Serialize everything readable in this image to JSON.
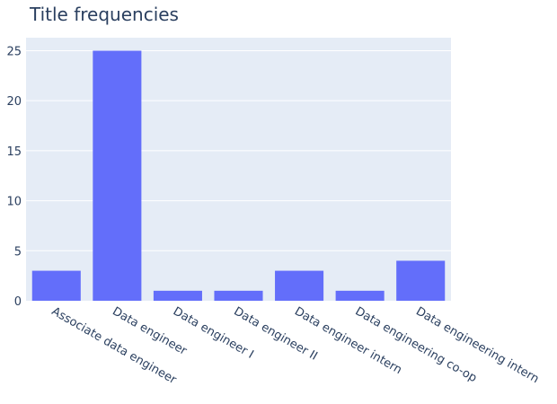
{
  "chart_data": {
    "type": "bar",
    "title": "Title frequencies",
    "xlabel": "",
    "ylabel": "",
    "categories": [
      "Associate data engineer",
      "Data engineer",
      "Data engineer I",
      "Data engineer II",
      "Data engineer intern",
      "Data engineering co-op",
      "Data engineering intern"
    ],
    "values": [
      3,
      25,
      1,
      1,
      3,
      1,
      4
    ],
    "ylim": [
      0,
      26.3
    ],
    "yticks": [
      0,
      5,
      10,
      15,
      20,
      25
    ],
    "grid": true,
    "legend": "none",
    "bar_color": "#636efa",
    "plot_bg": "#e5ecf6"
  }
}
